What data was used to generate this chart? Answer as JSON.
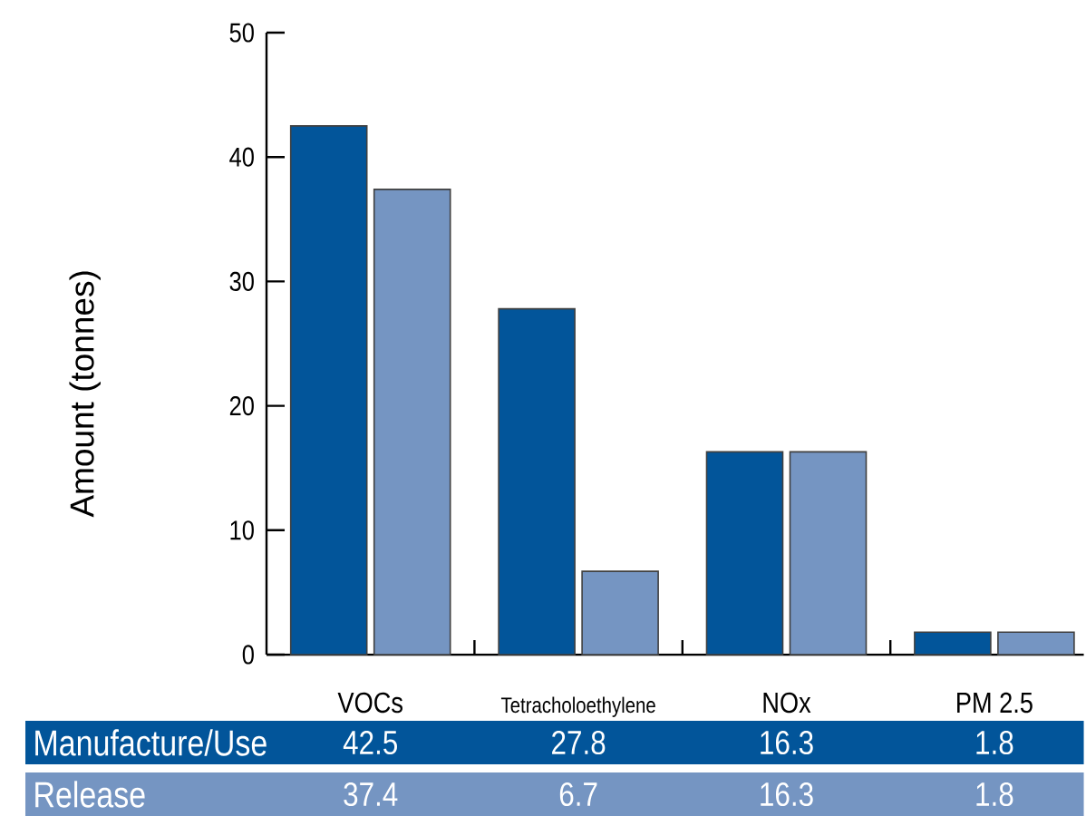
{
  "chart_data": {
    "type": "bar",
    "ylabel": "Amount (tonnes)",
    "categories": [
      "VOCs",
      "Tetracholoethylene",
      "NOx",
      "PM 2.5"
    ],
    "series": [
      {
        "name": "Manufacture/Use",
        "color": "#02559a",
        "values": [
          42.5,
          27.8,
          16.3,
          1.8
        ]
      },
      {
        "name": "Release",
        "color": "#7595c2",
        "values": [
          37.4,
          6.7,
          16.3,
          1.8
        ]
      }
    ],
    "ylim": [
      0,
      50
    ],
    "yticks": [
      0,
      10,
      20,
      30,
      40,
      50
    ],
    "data_labels": true,
    "legend": "bottom"
  }
}
